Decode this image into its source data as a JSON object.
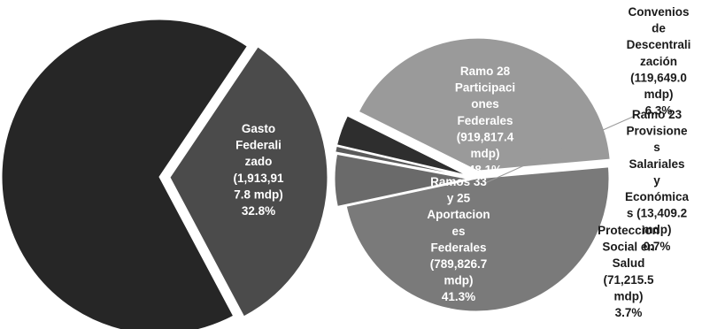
{
  "chart_data": [
    {
      "type": "pie",
      "slices": [
        {
          "name": "",
          "value": 67.2,
          "color": "#262626",
          "label_lines": []
        },
        {
          "name": "Gasto Federalizado",
          "value": 32.8,
          "color": "#4b4b4b",
          "label_lines": [
            "Gasto",
            "Federali",
            "zado",
            "(1,913,91",
            "7.8 mdp)",
            "32.8%"
          ]
        }
      ]
    },
    {
      "type": "pie",
      "slices": [
        {
          "name": "Ramo 28 Participaciones Federales",
          "value": 48.1,
          "color": "#7a7a7a",
          "label_lines": [
            "Ramo 28",
            "Participaci",
            "ones",
            "Federales",
            "(919,817.4",
            "mdp)",
            "48.1%"
          ]
        },
        {
          "name": "Convenios de Descentralización",
          "value": 6.3,
          "color": "#6a6a6a",
          "label_lines": [
            "Convenios",
            "de",
            "Descentrali",
            "zación",
            "(119,649.0",
            "mdp)",
            "6.3%"
          ]
        },
        {
          "name": "Ramo 23 Provisiones Salariales y Económicas",
          "value": 0.7,
          "color": "#5a5a5a",
          "label_lines": [
            "Ramo 23",
            "Provisione",
            "s",
            "Salariales",
            "y",
            "Económica",
            "s (13,409.2",
            "mdp)",
            "0.7%"
          ]
        },
        {
          "name": "Proteccion Social en Salud",
          "value": 3.7,
          "color": "#2e2e2e",
          "label_lines": [
            "Proteccion",
            "Social en",
            "Salud",
            "(71,215.5",
            "mdp)",
            "3.7%"
          ]
        },
        {
          "name": "Ramos 33 y 25 Aportaciones Federales",
          "value": 41.3,
          "color": "#9a9a9a",
          "label_lines": [
            "Ramos 33",
            "y 25",
            "Aportacion",
            "es",
            "Federales",
            "(789,826.7",
            "mdp)",
            "41.3%"
          ]
        }
      ]
    }
  ]
}
